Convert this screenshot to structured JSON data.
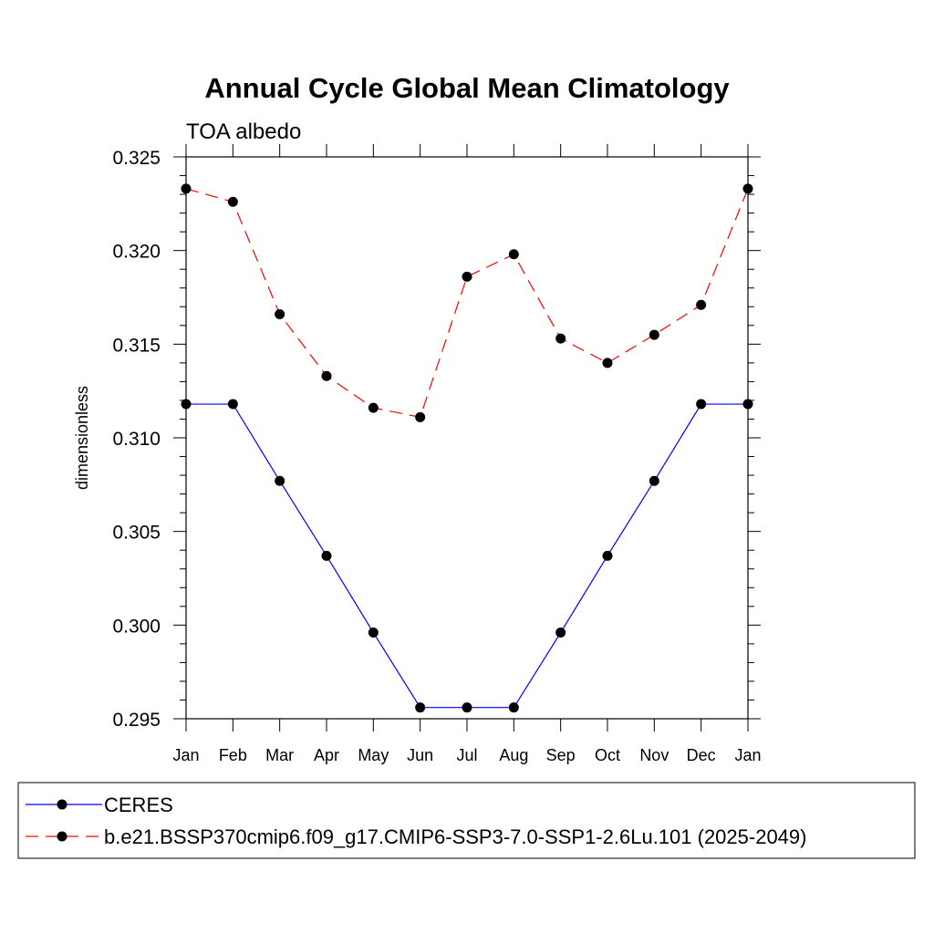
{
  "chart_data": {
    "type": "line",
    "title": "Annual Cycle Global Mean Climatology",
    "subtitle": "TOA albedo",
    "xlabel": "",
    "ylabel": "dimensionless",
    "categories": [
      "Jan",
      "Feb",
      "Mar",
      "Apr",
      "May",
      "Jun",
      "Jul",
      "Aug",
      "Sep",
      "Oct",
      "Nov",
      "Dec",
      "Jan"
    ],
    "ylim": [
      0.295,
      0.325
    ],
    "yticks": [
      "0.295",
      "0.300",
      "0.305",
      "0.310",
      "0.315",
      "0.320",
      "0.325"
    ],
    "grid": false,
    "legend_position": "bottom",
    "series": [
      {
        "name": "CERES",
        "color": "#0000ff",
        "line_style": "solid",
        "marker": "filled-circle",
        "values": [
          0.3118,
          0.3118,
          0.3077,
          0.3037,
          0.2996,
          0.2956,
          0.2956,
          0.2956,
          0.2996,
          0.3037,
          0.3077,
          0.3118,
          0.3118
        ]
      },
      {
        "name": "b.e21.BSSP370cmip6.f09_g17.CMIP6-SSP3-7.0-SSP1-2.6Lu.101 (2025-2049)",
        "color": "#ff0000",
        "line_style": "dashed",
        "marker": "filled-circle",
        "values": [
          0.3233,
          0.3226,
          0.3166,
          0.3133,
          0.3116,
          0.3111,
          0.3186,
          0.3198,
          0.3153,
          0.314,
          0.3155,
          0.3171,
          0.3233
        ]
      }
    ]
  }
}
